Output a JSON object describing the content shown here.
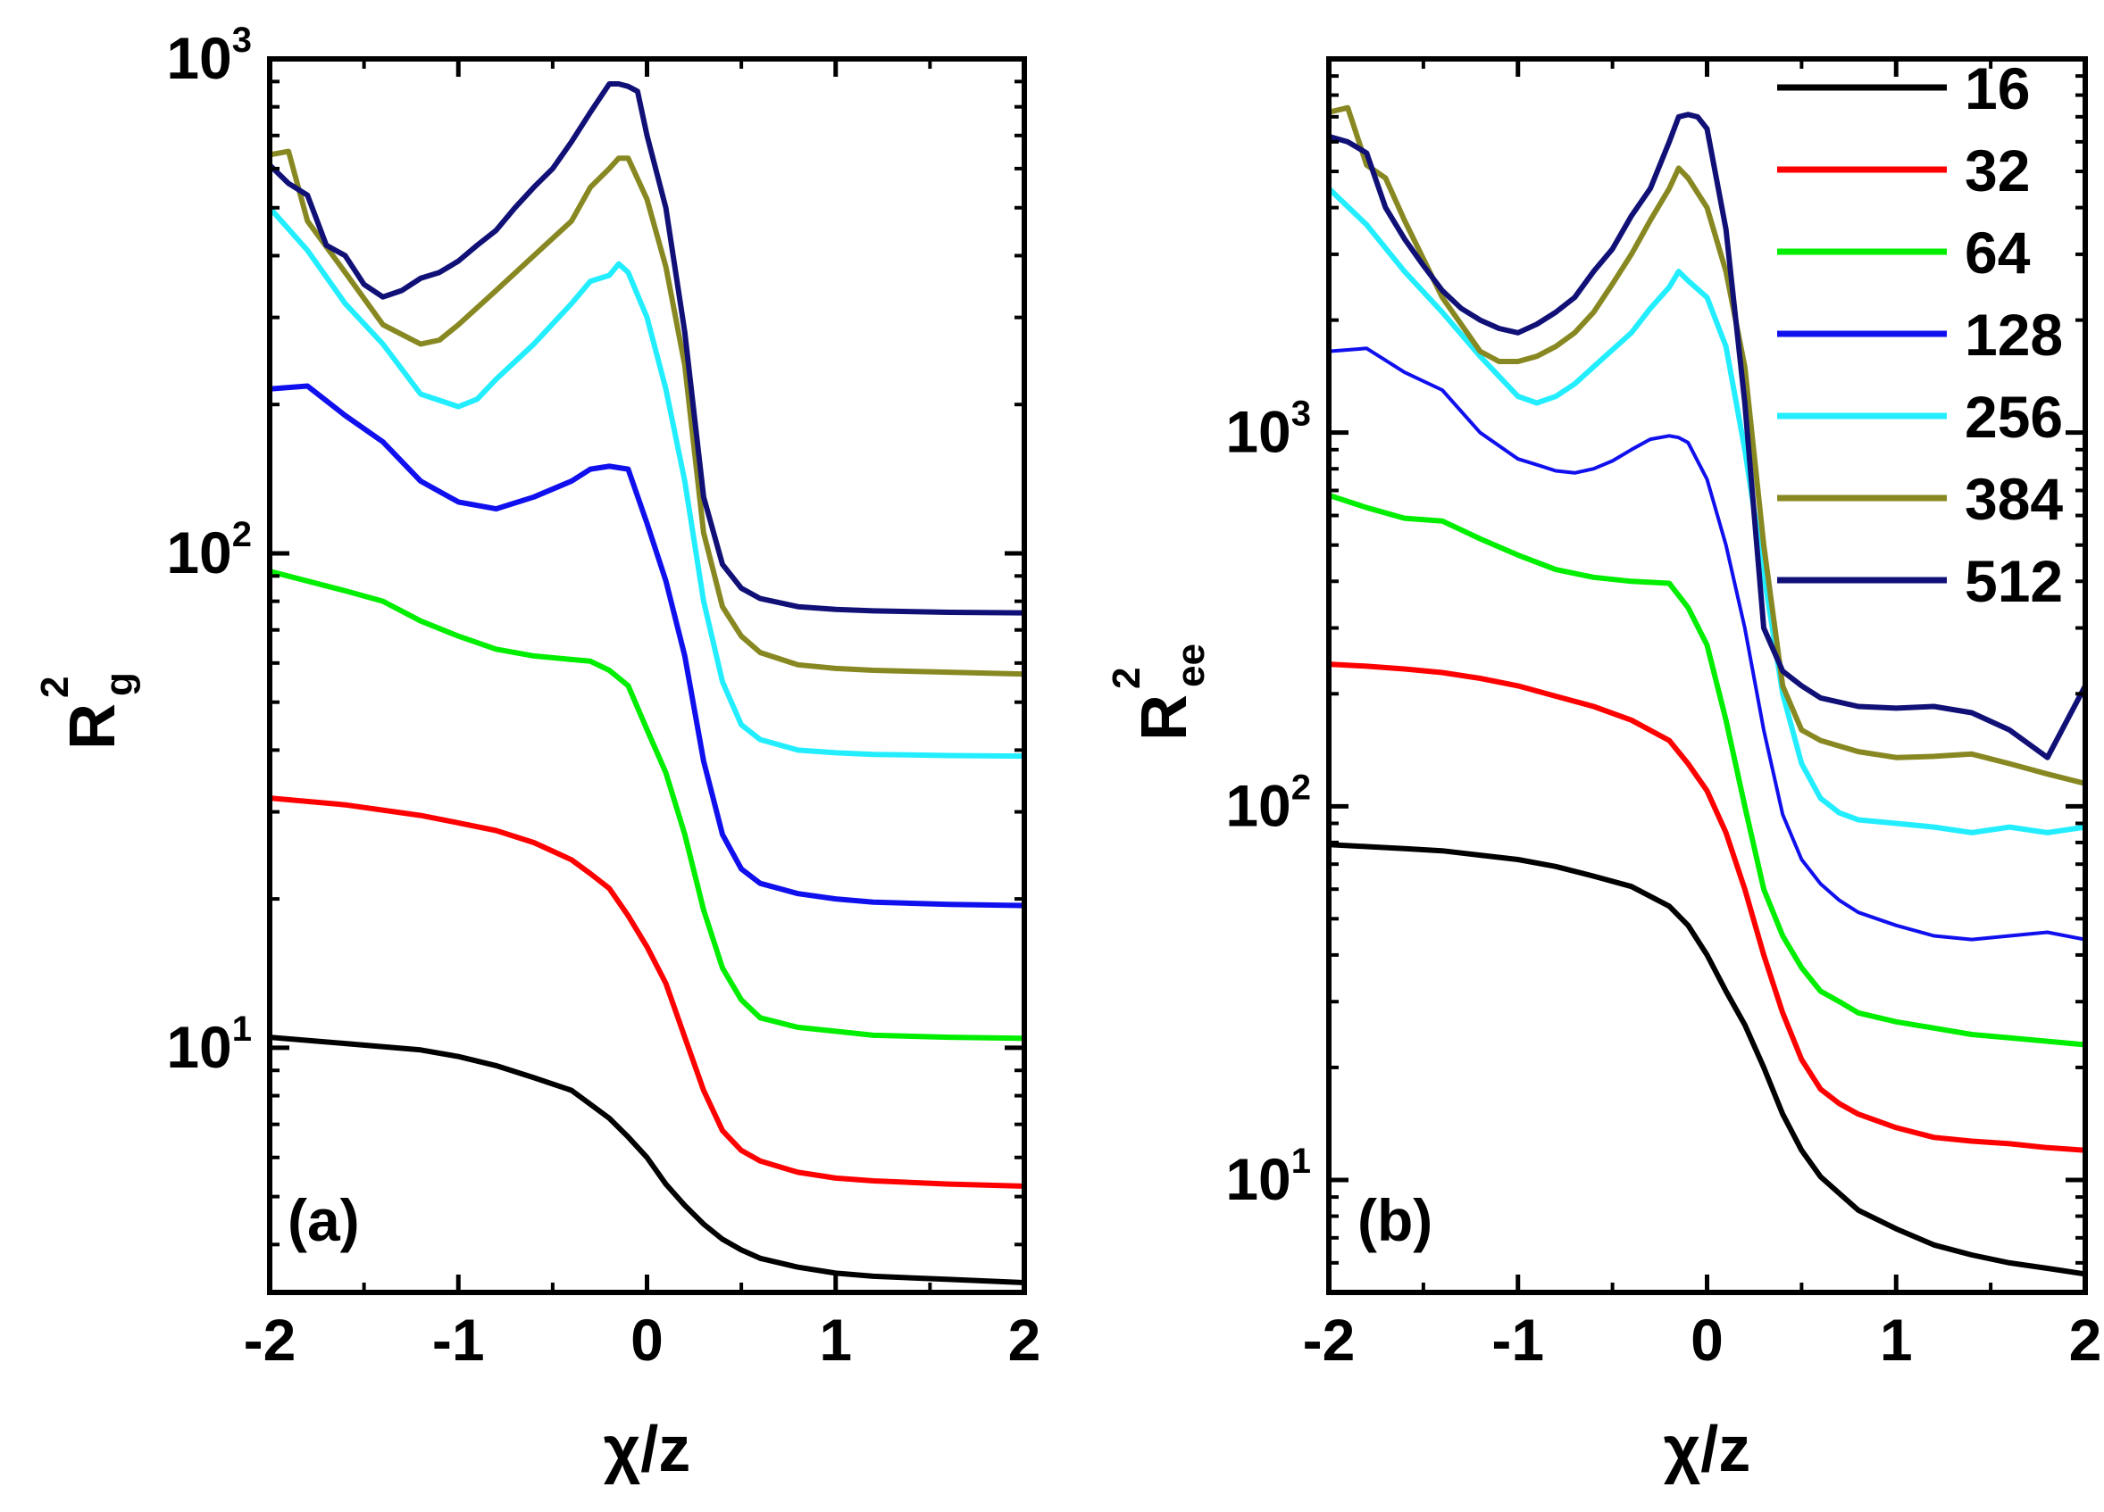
{
  "chart_data": [
    {
      "type": "line",
      "panel_label": "(a)",
      "xlabel": "χ/z",
      "ylabel": "R",
      "ylabel_sup": "2",
      "ylabel_sub": "g",
      "yscale": "log",
      "xlim": [
        -2,
        2
      ],
      "ylim": [
        3.2,
        1000
      ],
      "xticks": [
        "-2",
        "-1",
        "0",
        "1",
        "2"
      ],
      "xtick_values": [
        -2,
        -1,
        0,
        1,
        2
      ],
      "yticks": [
        {
          "base": "10",
          "exp": "1",
          "value": 10
        },
        {
          "base": "10",
          "exp": "2",
          "value": 100
        },
        {
          "base": "10",
          "exp": "3",
          "value": 1000
        }
      ],
      "series": [
        {
          "name": "16",
          "color": "#000000",
          "x": [
            -2,
            -1.6,
            -1.2,
            -1.0,
            -0.8,
            -0.6,
            -0.4,
            -0.2,
            -0.1,
            0,
            0.1,
            0.2,
            0.3,
            0.4,
            0.5,
            0.6,
            0.8,
            1.0,
            1.2,
            1.6,
            2.0
          ],
          "y": [
            10.5,
            10.2,
            9.9,
            9.6,
            9.2,
            8.7,
            8.2,
            7.2,
            6.6,
            6.0,
            5.3,
            4.8,
            4.4,
            4.1,
            3.9,
            3.75,
            3.6,
            3.5,
            3.45,
            3.4,
            3.35
          ]
        },
        {
          "name": "32",
          "color": "#ff0000",
          "x": [
            -2,
            -1.6,
            -1.2,
            -1.0,
            -0.8,
            -0.6,
            -0.4,
            -0.3,
            -0.2,
            -0.1,
            0,
            0.1,
            0.2,
            0.3,
            0.4,
            0.5,
            0.6,
            0.8,
            1.0,
            1.2,
            1.6,
            2.0
          ],
          "y": [
            32,
            31,
            29.5,
            28.5,
            27.5,
            26,
            24,
            22.5,
            21,
            18.5,
            16,
            13.5,
            10.5,
            8.2,
            6.8,
            6.2,
            5.9,
            5.6,
            5.45,
            5.38,
            5.3,
            5.25
          ]
        },
        {
          "name": "64",
          "color": "#00ee00",
          "x": [
            -2,
            -1.6,
            -1.4,
            -1.2,
            -1.0,
            -0.8,
            -0.6,
            -0.4,
            -0.3,
            -0.2,
            -0.1,
            0,
            0.1,
            0.2,
            0.3,
            0.4,
            0.5,
            0.6,
            0.8,
            1.0,
            1.2,
            1.6,
            2.0
          ],
          "y": [
            92,
            84,
            80,
            73,
            68,
            64,
            62,
            61,
            60.5,
            58,
            54,
            44,
            36,
            27,
            19,
            14.5,
            12.5,
            11.5,
            11,
            10.8,
            10.6,
            10.5,
            10.45
          ]
        },
        {
          "name": "128",
          "color": "#1010ee",
          "x": [
            -2,
            -1.8,
            -1.6,
            -1.4,
            -1.2,
            -1.0,
            -0.8,
            -0.6,
            -0.4,
            -0.3,
            -0.2,
            -0.1,
            0,
            0.1,
            0.2,
            0.3,
            0.4,
            0.5,
            0.6,
            0.8,
            1.0,
            1.2,
            1.6,
            2.0
          ],
          "y": [
            215,
            218,
            190,
            168,
            140,
            127,
            123,
            130,
            140,
            148,
            150,
            148,
            115,
            88,
            62,
            38,
            27,
            23,
            21.5,
            20.5,
            20,
            19.7,
            19.5,
            19.4
          ]
        },
        {
          "name": "256",
          "color": "#22eeff",
          "x": [
            -2,
            -1.8,
            -1.6,
            -1.4,
            -1.2,
            -1.0,
            -0.9,
            -0.8,
            -0.6,
            -0.4,
            -0.3,
            -0.2,
            -0.15,
            -0.1,
            0,
            0.1,
            0.2,
            0.3,
            0.4,
            0.5,
            0.6,
            0.8,
            1.0,
            1.2,
            1.6,
            2.0
          ],
          "y": [
            500,
            410,
            320,
            265,
            210,
            198,
            205,
            225,
            265,
            320,
            355,
            365,
            385,
            370,
            300,
            215,
            140,
            80,
            55,
            45,
            42,
            40,
            39.5,
            39.2,
            39,
            38.9
          ]
        },
        {
          "name": "384",
          "color": "#888822",
          "x": [
            -2,
            -1.9,
            -1.8,
            -1.6,
            -1.4,
            -1.2,
            -1.1,
            -1.0,
            -0.8,
            -0.6,
            -0.4,
            -0.3,
            -0.2,
            -0.15,
            -0.1,
            0,
            0.1,
            0.2,
            0.3,
            0.4,
            0.5,
            0.6,
            0.8,
            1.0,
            1.2,
            1.6,
            2.0
          ],
          "y": [
            640,
            650,
            470,
            370,
            290,
            265,
            270,
            290,
            340,
            400,
            470,
            550,
            600,
            630,
            630,
            520,
            380,
            240,
            110,
            78,
            68,
            63,
            59.5,
            58.5,
            58,
            57.5,
            57
          ]
        },
        {
          "name": "512",
          "color": "#101077",
          "x": [
            -2,
            -1.9,
            -1.8,
            -1.7,
            -1.6,
            -1.5,
            -1.4,
            -1.3,
            -1.2,
            -1.1,
            -1.0,
            -0.9,
            -0.8,
            -0.7,
            -0.6,
            -0.5,
            -0.4,
            -0.3,
            -0.2,
            -0.15,
            -0.1,
            -0.05,
            0,
            0.1,
            0.2,
            0.3,
            0.4,
            0.5,
            0.6,
            0.8,
            1.0,
            1.2,
            1.6,
            2.0
          ],
          "y": [
            610,
            560,
            530,
            420,
            400,
            350,
            330,
            340,
            360,
            370,
            390,
            420,
            450,
            500,
            550,
            600,
            680,
            780,
            890,
            890,
            880,
            860,
            700,
            500,
            280,
            130,
            95,
            85,
            81,
            78,
            77,
            76.5,
            76,
            75.8
          ]
        }
      ]
    },
    {
      "type": "line",
      "panel_label": "(b)",
      "xlabel": "χ/z",
      "ylabel": "R",
      "ylabel_sup": "2",
      "ylabel_sub": "ee",
      "yscale": "log",
      "xlim": [
        -2,
        2
      ],
      "ylim": [
        5,
        10000
      ],
      "xticks": [
        "-2",
        "-1",
        "0",
        "1",
        "2"
      ],
      "xtick_values": [
        -2,
        -1,
        0,
        1,
        2
      ],
      "yticks": [
        {
          "base": "10",
          "exp": "1",
          "value": 10
        },
        {
          "base": "10",
          "exp": "2",
          "value": 100
        },
        {
          "base": "10",
          "exp": "3",
          "value": 1000
        }
      ],
      "legend": {
        "placement": "top-right",
        "entries": [
          "16",
          "32",
          "64",
          "128",
          "256",
          "384",
          "512"
        ]
      },
      "series": [
        {
          "name": "16",
          "color": "#000000",
          "x": [
            -2,
            -1.8,
            -1.6,
            -1.4,
            -1.2,
            -1.0,
            -0.8,
            -0.6,
            -0.4,
            -0.2,
            -0.1,
            0,
            0.1,
            0.2,
            0.3,
            0.4,
            0.5,
            0.6,
            0.7,
            0.8,
            1.0,
            1.2,
            1.4,
            1.6,
            1.8,
            2.0
          ],
          "y": [
            79,
            78,
            77,
            76,
            74,
            72,
            69,
            65,
            61,
            54,
            48,
            40,
            32,
            26,
            20,
            15,
            12,
            10.2,
            9.2,
            8.3,
            7.4,
            6.7,
            6.3,
            6.0,
            5.8,
            5.6
          ]
        },
        {
          "name": "32",
          "color": "#ff0000",
          "x": [
            -2,
            -1.8,
            -1.6,
            -1.4,
            -1.2,
            -1.0,
            -0.8,
            -0.6,
            -0.4,
            -0.2,
            -0.1,
            0,
            0.1,
            0.2,
            0.3,
            0.4,
            0.5,
            0.6,
            0.7,
            0.8,
            1.0,
            1.2,
            1.4,
            1.6,
            1.8,
            2.0
          ],
          "y": [
            240,
            237,
            233,
            228,
            220,
            210,
            197,
            185,
            170,
            150,
            130,
            110,
            85,
            60,
            40,
            28,
            21,
            17.5,
            16,
            15,
            13.8,
            13,
            12.7,
            12.5,
            12.2,
            12
          ]
        },
        {
          "name": "64",
          "color": "#00ee00",
          "x": [
            -2,
            -1.8,
            -1.6,
            -1.4,
            -1.2,
            -1.0,
            -0.8,
            -0.6,
            -0.4,
            -0.2,
            -0.1,
            0,
            0.1,
            0.2,
            0.3,
            0.4,
            0.5,
            0.6,
            0.7,
            0.8,
            1.0,
            1.2,
            1.4,
            1.6,
            1.8,
            2.0
          ],
          "y": [
            680,
            630,
            590,
            580,
            520,
            470,
            430,
            410,
            400,
            395,
            340,
            270,
            170,
            100,
            60,
            45,
            37,
            32,
            30,
            28,
            26.5,
            25.5,
            24.5,
            24,
            23.5,
            23
          ]
        },
        {
          "name": "128",
          "color": "#1010ee",
          "x": [
            -2,
            -1.8,
            -1.6,
            -1.4,
            -1.2,
            -1.0,
            -0.9,
            -0.8,
            -0.7,
            -0.6,
            -0.5,
            -0.4,
            -0.3,
            -0.2,
            -0.15,
            -0.1,
            0,
            0.1,
            0.2,
            0.3,
            0.4,
            0.5,
            0.6,
            0.7,
            0.8,
            1.0,
            1.2,
            1.4,
            1.6,
            1.8,
            2.0
          ],
          "y": [
            1650,
            1680,
            1450,
            1300,
            1000,
            850,
            820,
            790,
            780,
            800,
            840,
            900,
            960,
            980,
            970,
            940,
            750,
            500,
            300,
            160,
            95,
            72,
            62,
            56,
            52,
            48,
            45,
            44,
            45,
            46,
            44
          ]
        },
        {
          "name": "256",
          "color": "#22eeff",
          "x": [
            -2,
            -1.8,
            -1.6,
            -1.4,
            -1.2,
            -1.0,
            -0.9,
            -0.8,
            -0.7,
            -0.6,
            -0.4,
            -0.3,
            -0.2,
            -0.15,
            -0.1,
            0,
            0.1,
            0.2,
            0.3,
            0.4,
            0.5,
            0.6,
            0.7,
            0.8,
            1.0,
            1.2,
            1.4,
            1.6,
            1.8,
            2.0
          ],
          "y": [
            4500,
            3600,
            2700,
            2100,
            1600,
            1250,
            1200,
            1250,
            1350,
            1500,
            1850,
            2150,
            2450,
            2700,
            2550,
            2300,
            1700,
            900,
            420,
            200,
            130,
            105,
            96,
            92,
            90,
            88,
            85,
            88,
            85,
            88
          ]
        },
        {
          "name": "384",
          "color": "#888822",
          "x": [
            -2,
            -1.9,
            -1.8,
            -1.7,
            -1.6,
            -1.4,
            -1.2,
            -1.1,
            -1.0,
            -0.9,
            -0.8,
            -0.7,
            -0.6,
            -0.5,
            -0.4,
            -0.3,
            -0.2,
            -0.15,
            -0.1,
            0,
            0.1,
            0.2,
            0.3,
            0.4,
            0.5,
            0.6,
            0.8,
            1.0,
            1.2,
            1.4,
            1.6,
            1.8,
            2.0
          ],
          "y": [
            7200,
            7400,
            5200,
            4800,
            3700,
            2300,
            1650,
            1550,
            1550,
            1600,
            1700,
            1850,
            2100,
            2500,
            3000,
            3700,
            4500,
            5100,
            4800,
            4000,
            2700,
            1500,
            500,
            210,
            160,
            150,
            140,
            135,
            136,
            138,
            130,
            122,
            115
          ]
        },
        {
          "name": "512",
          "color": "#101077",
          "x": [
            -2,
            -1.9,
            -1.8,
            -1.7,
            -1.6,
            -1.5,
            -1.4,
            -1.3,
            -1.2,
            -1.1,
            -1.0,
            -0.9,
            -0.8,
            -0.7,
            -0.6,
            -0.5,
            -0.4,
            -0.3,
            -0.2,
            -0.15,
            -0.1,
            -0.05,
            0,
            0.1,
            0.2,
            0.3,
            0.4,
            0.5,
            0.6,
            0.8,
            1.0,
            1.2,
            1.4,
            1.6,
            1.8,
            2.0
          ],
          "y": [
            6200,
            6000,
            5600,
            4000,
            3300,
            2800,
            2400,
            2150,
            2000,
            1900,
            1850,
            1950,
            2100,
            2300,
            2700,
            3100,
            3800,
            4500,
            6000,
            7000,
            7100,
            7000,
            6500,
            3500,
            1200,
            300,
            230,
            210,
            195,
            185,
            183,
            185,
            178,
            160,
            135,
            210
          ]
        }
      ]
    }
  ]
}
